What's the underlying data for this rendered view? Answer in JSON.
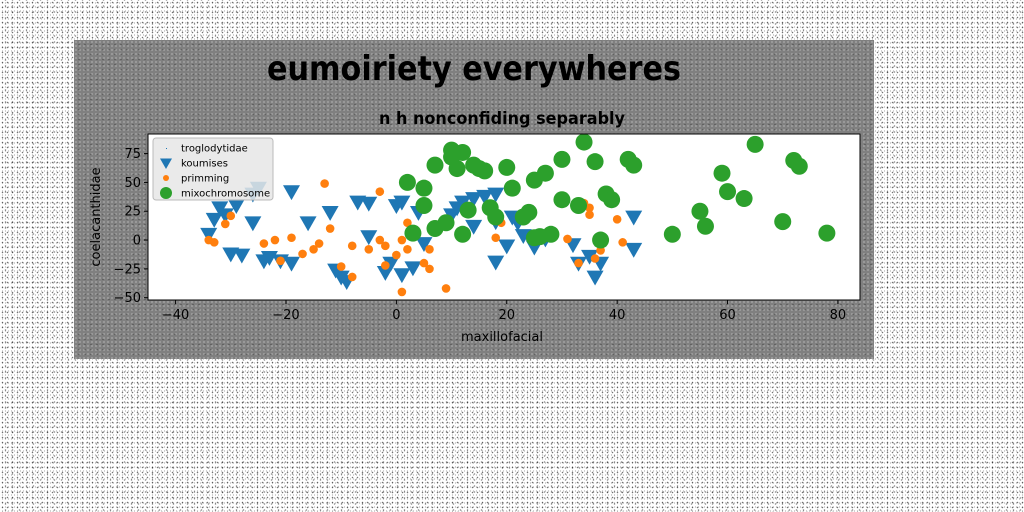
{
  "chart_data": {
    "type": "scatter",
    "title": "eumoiriety everywheres",
    "subtitle": "n h nonconfiding separably",
    "xlabel": "maxillofacial",
    "ylabel": "coelacanthidae",
    "xlim": [
      -45,
      84
    ],
    "ylim": [
      -52,
      92
    ],
    "xticks": [
      -40,
      -20,
      0,
      20,
      40,
      60,
      80
    ],
    "yticks": [
      -50,
      -25,
      0,
      25,
      50,
      75
    ],
    "grid": false,
    "legend_position": "top-left",
    "series": [
      {
        "name": "troglodytidae",
        "marker": "pixel",
        "color": "#1f77b4",
        "points": []
      },
      {
        "name": "koumises",
        "marker": "triangle-down",
        "color": "#1f77b4",
        "points": [
          [
            -34,
            5
          ],
          [
            -33,
            18
          ],
          [
            -32,
            28
          ],
          [
            -31,
            22
          ],
          [
            -30,
            -12
          ],
          [
            -29,
            30
          ],
          [
            -28,
            -13
          ],
          [
            -26,
            40
          ],
          [
            -26,
            15
          ],
          [
            -25,
            45
          ],
          [
            -24,
            -18
          ],
          [
            -23,
            -15
          ],
          [
            -21,
            -18
          ],
          [
            -19,
            -20
          ],
          [
            -19,
            42
          ],
          [
            -16,
            15
          ],
          [
            -12,
            24
          ],
          [
            -11,
            -26
          ],
          [
            -10,
            -32
          ],
          [
            -9,
            -36
          ],
          [
            -7,
            33
          ],
          [
            -5,
            32
          ],
          [
            -5,
            3
          ],
          [
            -2,
            -28
          ],
          [
            -1,
            -20
          ],
          [
            0,
            30
          ],
          [
            1,
            33
          ],
          [
            1,
            -30
          ],
          [
            3,
            -24
          ],
          [
            4,
            24
          ],
          [
            5,
            -3
          ],
          [
            10,
            22
          ],
          [
            11,
            28
          ],
          [
            12,
            33
          ],
          [
            14,
            12
          ],
          [
            14,
            36
          ],
          [
            16,
            38
          ],
          [
            18,
            16
          ],
          [
            18,
            -19
          ],
          [
            18,
            40
          ],
          [
            20,
            -5
          ],
          [
            21,
            20
          ],
          [
            22,
            15
          ],
          [
            23,
            4
          ],
          [
            25,
            -6
          ],
          [
            27,
            1
          ],
          [
            32,
            -4
          ],
          [
            33,
            -20
          ],
          [
            35,
            -14
          ],
          [
            36,
            -32
          ],
          [
            37,
            -20
          ],
          [
            43,
            -8
          ],
          [
            43,
            20
          ]
        ]
      },
      {
        "name": "primming",
        "marker": "circle-small",
        "color": "#ff7f0e",
        "points": [
          [
            -34,
            0
          ],
          [
            -33,
            -2
          ],
          [
            -31,
            14
          ],
          [
            -30,
            21
          ],
          [
            -24,
            -3
          ],
          [
            -22,
            0
          ],
          [
            -21,
            -18
          ],
          [
            -19,
            2
          ],
          [
            -17,
            -12
          ],
          [
            -15,
            -8
          ],
          [
            -14,
            -3
          ],
          [
            -13,
            49
          ],
          [
            -12,
            10
          ],
          [
            -10,
            -23
          ],
          [
            -8,
            -5
          ],
          [
            -8,
            -32
          ],
          [
            -5,
            -8
          ],
          [
            -3,
            42
          ],
          [
            -3,
            0
          ],
          [
            -2,
            -22
          ],
          [
            -2,
            -5
          ],
          [
            0,
            -13
          ],
          [
            1,
            -45
          ],
          [
            1,
            0
          ],
          [
            2,
            15
          ],
          [
            2,
            -8
          ],
          [
            5,
            -20
          ],
          [
            6,
            -25
          ],
          [
            6,
            -8
          ],
          [
            9,
            -42
          ],
          [
            18,
            2
          ],
          [
            19,
            15
          ],
          [
            31,
            1
          ],
          [
            33,
            -20
          ],
          [
            34,
            32
          ],
          [
            35,
            28
          ],
          [
            35,
            22
          ],
          [
            36,
            -16
          ],
          [
            37,
            -9
          ],
          [
            40,
            18
          ],
          [
            41,
            -2
          ]
        ]
      },
      {
        "name": "mixochromosome",
        "marker": "circle-large",
        "color": "#2ca02c",
        "points": [
          [
            2,
            50
          ],
          [
            3,
            6
          ],
          [
            5,
            45
          ],
          [
            5,
            30
          ],
          [
            7,
            65
          ],
          [
            7,
            10
          ],
          [
            9,
            15
          ],
          [
            10,
            72
          ],
          [
            10,
            78
          ],
          [
            11,
            62
          ],
          [
            12,
            76
          ],
          [
            12,
            5
          ],
          [
            13,
            26
          ],
          [
            14,
            65
          ],
          [
            15,
            62
          ],
          [
            16,
            60
          ],
          [
            17,
            28
          ],
          [
            18,
            20
          ],
          [
            20,
            63
          ],
          [
            21,
            45
          ],
          [
            23,
            20
          ],
          [
            24,
            24
          ],
          [
            25,
            52
          ],
          [
            25,
            2
          ],
          [
            26,
            3
          ],
          [
            27,
            58
          ],
          [
            28,
            5
          ],
          [
            30,
            35
          ],
          [
            30,
            70
          ],
          [
            33,
            30
          ],
          [
            34,
            85
          ],
          [
            36,
            68
          ],
          [
            37,
            0
          ],
          [
            38,
            40
          ],
          [
            39,
            35
          ],
          [
            42,
            70
          ],
          [
            43,
            65
          ],
          [
            50,
            5
          ],
          [
            55,
            25
          ],
          [
            56,
            12
          ],
          [
            59,
            58
          ],
          [
            60,
            42
          ],
          [
            63,
            36
          ],
          [
            65,
            83
          ],
          [
            70,
            16
          ],
          [
            72,
            69
          ],
          [
            73,
            64
          ],
          [
            78,
            6
          ]
        ]
      }
    ]
  }
}
